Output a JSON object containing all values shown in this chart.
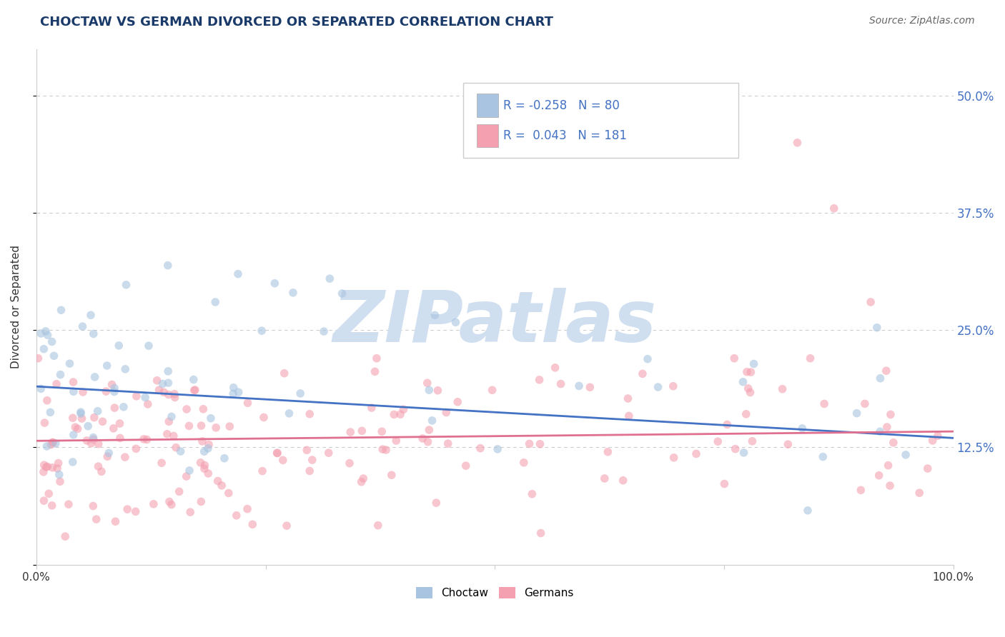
{
  "title": "CHOCTAW VS GERMAN DIVORCED OR SEPARATED CORRELATION CHART",
  "source_text": "Source: ZipAtlas.com",
  "ylabel": "Divorced or Separated",
  "xlim": [
    0,
    100
  ],
  "ylim": [
    0,
    55
  ],
  "choctaw_color": "#a8c4e0",
  "german_color": "#f4a0b0",
  "choctaw_line_color": "#4472c4",
  "german_line_color": "#e07090",
  "choctaw_R": -0.258,
  "choctaw_N": 80,
  "german_R": 0.043,
  "german_N": 181,
  "watermark": "ZIPatlas",
  "watermark_color": "#d0dff0",
  "legend_label_choctaw": "Choctaw",
  "legend_label_german": "Germans",
  "background_color": "#ffffff",
  "grid_color": "#cccccc",
  "title_color": "#1a3a6a",
  "source_color": "#666666",
  "axis_label_color": "#333333",
  "tick_label_color": "#4472c4",
  "legend_text_color": "#333333",
  "choctaw_line_start": 19.0,
  "choctaw_line_end": 13.5,
  "german_line_start": 13.2,
  "german_line_end": 14.2
}
